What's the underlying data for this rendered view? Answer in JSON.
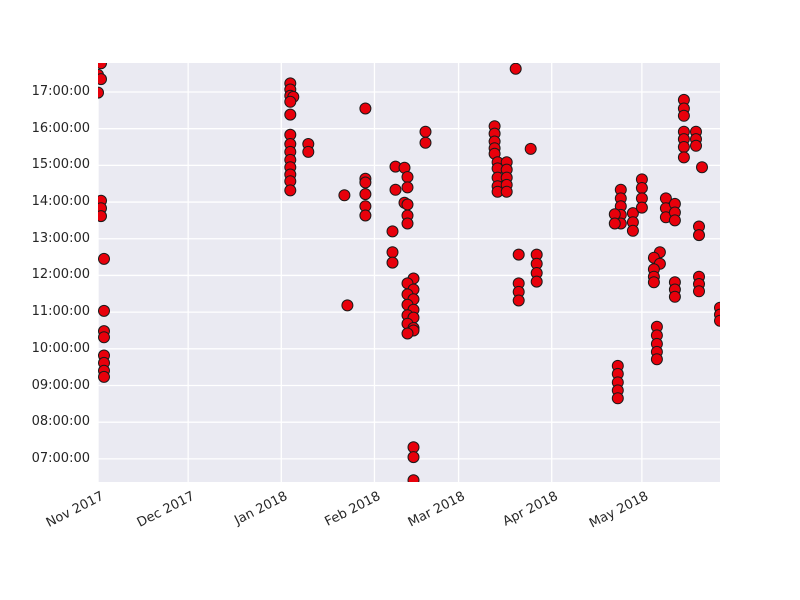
{
  "chart_data": {
    "type": "scatter",
    "title": "",
    "xlabel": "",
    "ylabel": "",
    "grid": true,
    "legend_position": "none",
    "plot_background": "#eaeaf2",
    "grid_color": "#ffffff",
    "marker": {
      "shape": "circle",
      "fill": "#e8000b",
      "edge": "#1a1a1a",
      "radius_px": 5.5
    },
    "tick_label_color": "#262626",
    "x_domain": [
      "2017-11-01",
      "2018-05-27"
    ],
    "y_domain_hours": [
      6.37,
      17.79
    ],
    "x_ticks": [
      {
        "date": "2017-11-01",
        "label": "Nov 2017"
      },
      {
        "date": "2017-12-01",
        "label": "Dec 2017"
      },
      {
        "date": "2018-01-01",
        "label": "Jan 2018"
      },
      {
        "date": "2018-02-01",
        "label": "Feb 2018"
      },
      {
        "date": "2018-03-01",
        "label": "Mar 2018"
      },
      {
        "date": "2018-04-01",
        "label": "Apr 2018"
      },
      {
        "date": "2018-05-01",
        "label": "May 2018"
      }
    ],
    "y_ticks": [
      {
        "hour": 7,
        "label": "07:00:00"
      },
      {
        "hour": 8,
        "label": "08:00:00"
      },
      {
        "hour": 9,
        "label": "09:00:00"
      },
      {
        "hour": 10,
        "label": "10:00:00"
      },
      {
        "hour": 11,
        "label": "11:00:00"
      },
      {
        "hour": 12,
        "label": "12:00:00"
      },
      {
        "hour": 13,
        "label": "13:00:00"
      },
      {
        "hour": 14,
        "label": "14:00:00"
      },
      {
        "hour": 15,
        "label": "15:00:00"
      },
      {
        "hour": 16,
        "label": "16:00:00"
      },
      {
        "hour": 17,
        "label": "17:00:00"
      }
    ],
    "points": [
      [
        "2017-11-02",
        "17:47"
      ],
      [
        "2017-11-01",
        "17:28"
      ],
      [
        "2017-11-02",
        "17:21"
      ],
      [
        "2017-11-01",
        "16:59"
      ],
      [
        "2017-11-02",
        "14:02"
      ],
      [
        "2017-11-02",
        "13:50"
      ],
      [
        "2017-11-02",
        "13:37"
      ],
      [
        "2017-11-03",
        "12:27"
      ],
      [
        "2017-11-03",
        "11:02"
      ],
      [
        "2017-11-03",
        "10:29"
      ],
      [
        "2017-11-03",
        "10:19"
      ],
      [
        "2017-11-03",
        "09:49"
      ],
      [
        "2017-11-03",
        "09:37"
      ],
      [
        "2017-11-03",
        "09:24"
      ],
      [
        "2017-11-03",
        "09:14"
      ],
      [
        "2018-01-04",
        "17:14"
      ],
      [
        "2018-01-04",
        "17:04"
      ],
      [
        "2018-01-04",
        "16:54"
      ],
      [
        "2018-01-05",
        "16:52"
      ],
      [
        "2018-01-04",
        "16:44"
      ],
      [
        "2018-01-04",
        "16:23"
      ],
      [
        "2018-01-04",
        "15:50"
      ],
      [
        "2018-01-04",
        "15:35"
      ],
      [
        "2018-01-04",
        "15:22"
      ],
      [
        "2018-01-04",
        "15:09"
      ],
      [
        "2018-01-04",
        "14:57"
      ],
      [
        "2018-01-04",
        "14:45"
      ],
      [
        "2018-01-04",
        "14:34"
      ],
      [
        "2018-01-04",
        "14:19"
      ],
      [
        "2018-01-10",
        "15:35"
      ],
      [
        "2018-01-10",
        "15:22"
      ],
      [
        "2018-01-22",
        "14:11"
      ],
      [
        "2018-01-23",
        "11:11"
      ],
      [
        "2018-01-29",
        "16:33"
      ],
      [
        "2018-01-29",
        "14:38"
      ],
      [
        "2018-01-29",
        "14:32"
      ],
      [
        "2018-01-29",
        "14:13"
      ],
      [
        "2018-01-29",
        "13:53"
      ],
      [
        "2018-01-29",
        "13:38"
      ],
      [
        "2018-02-08",
        "14:58"
      ],
      [
        "2018-02-08",
        "14:20"
      ],
      [
        "2018-02-07",
        "13:12"
      ],
      [
        "2018-02-07",
        "12:38"
      ],
      [
        "2018-02-07",
        "12:21"
      ],
      [
        "2018-02-11",
        "14:56"
      ],
      [
        "2018-02-12",
        "14:41"
      ],
      [
        "2018-02-12",
        "14:24"
      ],
      [
        "2018-02-11",
        "13:59"
      ],
      [
        "2018-02-12",
        "13:56"
      ],
      [
        "2018-02-12",
        "13:38"
      ],
      [
        "2018-02-12",
        "13:25"
      ],
      [
        "2018-02-14",
        "11:55"
      ],
      [
        "2018-02-12",
        "11:47"
      ],
      [
        "2018-02-14",
        "11:37"
      ],
      [
        "2018-02-12",
        "11:29"
      ],
      [
        "2018-02-14",
        "11:21"
      ],
      [
        "2018-02-12",
        "11:12"
      ],
      [
        "2018-02-14",
        "11:04"
      ],
      [
        "2018-02-12",
        "10:55"
      ],
      [
        "2018-02-14",
        "10:51"
      ],
      [
        "2018-02-12",
        "10:41"
      ],
      [
        "2018-02-14",
        "10:34"
      ],
      [
        "2018-02-14",
        "10:30"
      ],
      [
        "2018-02-12",
        "10:25"
      ],
      [
        "2018-02-14",
        "07:19"
      ],
      [
        "2018-02-14",
        "07:03"
      ],
      [
        "2018-02-14",
        "06:25"
      ],
      [
        "2018-02-18",
        "15:55"
      ],
      [
        "2018-02-18",
        "15:37"
      ],
      [
        "2018-03-20",
        "17:38"
      ],
      [
        "2018-03-13",
        "16:04"
      ],
      [
        "2018-03-13",
        "15:52"
      ],
      [
        "2018-03-13",
        "15:39"
      ],
      [
        "2018-03-13",
        "15:28"
      ],
      [
        "2018-03-13",
        "15:19"
      ],
      [
        "2018-03-14",
        "15:05"
      ],
      [
        "2018-03-14",
        "14:55"
      ],
      [
        "2018-03-14",
        "14:40"
      ],
      [
        "2018-03-14",
        "14:26"
      ],
      [
        "2018-03-14",
        "14:17"
      ],
      [
        "2018-03-17",
        "15:05"
      ],
      [
        "2018-03-17",
        "14:53"
      ],
      [
        "2018-03-17",
        "14:40"
      ],
      [
        "2018-03-17",
        "14:28"
      ],
      [
        "2018-03-17",
        "14:17"
      ],
      [
        "2018-03-25",
        "15:27"
      ],
      [
        "2018-03-21",
        "12:34"
      ],
      [
        "2018-03-21",
        "11:47"
      ],
      [
        "2018-03-21",
        "11:33"
      ],
      [
        "2018-03-21",
        "11:19"
      ],
      [
        "2018-03-27",
        "12:34"
      ],
      [
        "2018-03-27",
        "12:19"
      ],
      [
        "2018-03-27",
        "12:04"
      ],
      [
        "2018-03-27",
        "11:50"
      ],
      [
        "2018-04-24",
        "14:20"
      ],
      [
        "2018-04-24",
        "14:06"
      ],
      [
        "2018-04-24",
        "13:53"
      ],
      [
        "2018-04-24",
        "13:39"
      ],
      [
        "2018-04-24",
        "13:25"
      ],
      [
        "2018-04-22",
        "13:40"
      ],
      [
        "2018-04-22",
        "13:25"
      ],
      [
        "2018-04-28",
        "13:42"
      ],
      [
        "2018-04-28",
        "13:27"
      ],
      [
        "2018-04-28",
        "13:13"
      ],
      [
        "2018-04-23",
        "09:32"
      ],
      [
        "2018-04-23",
        "09:19"
      ],
      [
        "2018-04-23",
        "09:05"
      ],
      [
        "2018-04-23",
        "08:52"
      ],
      [
        "2018-04-23",
        "08:39"
      ],
      [
        "2018-05-01",
        "14:37"
      ],
      [
        "2018-05-01",
        "14:23"
      ],
      [
        "2018-05-01",
        "14:06"
      ],
      [
        "2018-05-01",
        "13:51"
      ],
      [
        "2018-05-07",
        "12:38"
      ],
      [
        "2018-05-05",
        "12:29"
      ],
      [
        "2018-05-07",
        "12:19"
      ],
      [
        "2018-05-05",
        "12:10"
      ],
      [
        "2018-05-05",
        "11:58"
      ],
      [
        "2018-05-05",
        "11:49"
      ],
      [
        "2018-05-06",
        "10:36"
      ],
      [
        "2018-05-06",
        "10:22"
      ],
      [
        "2018-05-06",
        "10:08"
      ],
      [
        "2018-05-06",
        "09:55"
      ],
      [
        "2018-05-06",
        "09:43"
      ],
      [
        "2018-05-09",
        "14:06"
      ],
      [
        "2018-05-09",
        "13:50"
      ],
      [
        "2018-05-09",
        "13:35"
      ],
      [
        "2018-05-12",
        "13:57"
      ],
      [
        "2018-05-12",
        "13:43"
      ],
      [
        "2018-05-12",
        "13:30"
      ],
      [
        "2018-05-12",
        "11:49"
      ],
      [
        "2018-05-12",
        "11:37"
      ],
      [
        "2018-05-12",
        "11:25"
      ],
      [
        "2018-05-15",
        "16:47"
      ],
      [
        "2018-05-15",
        "16:33"
      ],
      [
        "2018-05-15",
        "16:21"
      ],
      [
        "2018-05-15",
        "15:55"
      ],
      [
        "2018-05-15",
        "15:43"
      ],
      [
        "2018-05-15",
        "15:30"
      ],
      [
        "2018-05-15",
        "15:13"
      ],
      [
        "2018-05-19",
        "15:55"
      ],
      [
        "2018-05-19",
        "15:43"
      ],
      [
        "2018-05-19",
        "15:32"
      ],
      [
        "2018-05-21",
        "14:57"
      ],
      [
        "2018-05-20",
        "13:20"
      ],
      [
        "2018-05-20",
        "13:06"
      ],
      [
        "2018-05-20",
        "11:58"
      ],
      [
        "2018-05-20",
        "11:46"
      ],
      [
        "2018-05-20",
        "11:34"
      ],
      [
        "2018-05-27",
        "11:07"
      ],
      [
        "2018-05-27",
        "10:56"
      ],
      [
        "2018-05-27",
        "10:46"
      ]
    ]
  }
}
